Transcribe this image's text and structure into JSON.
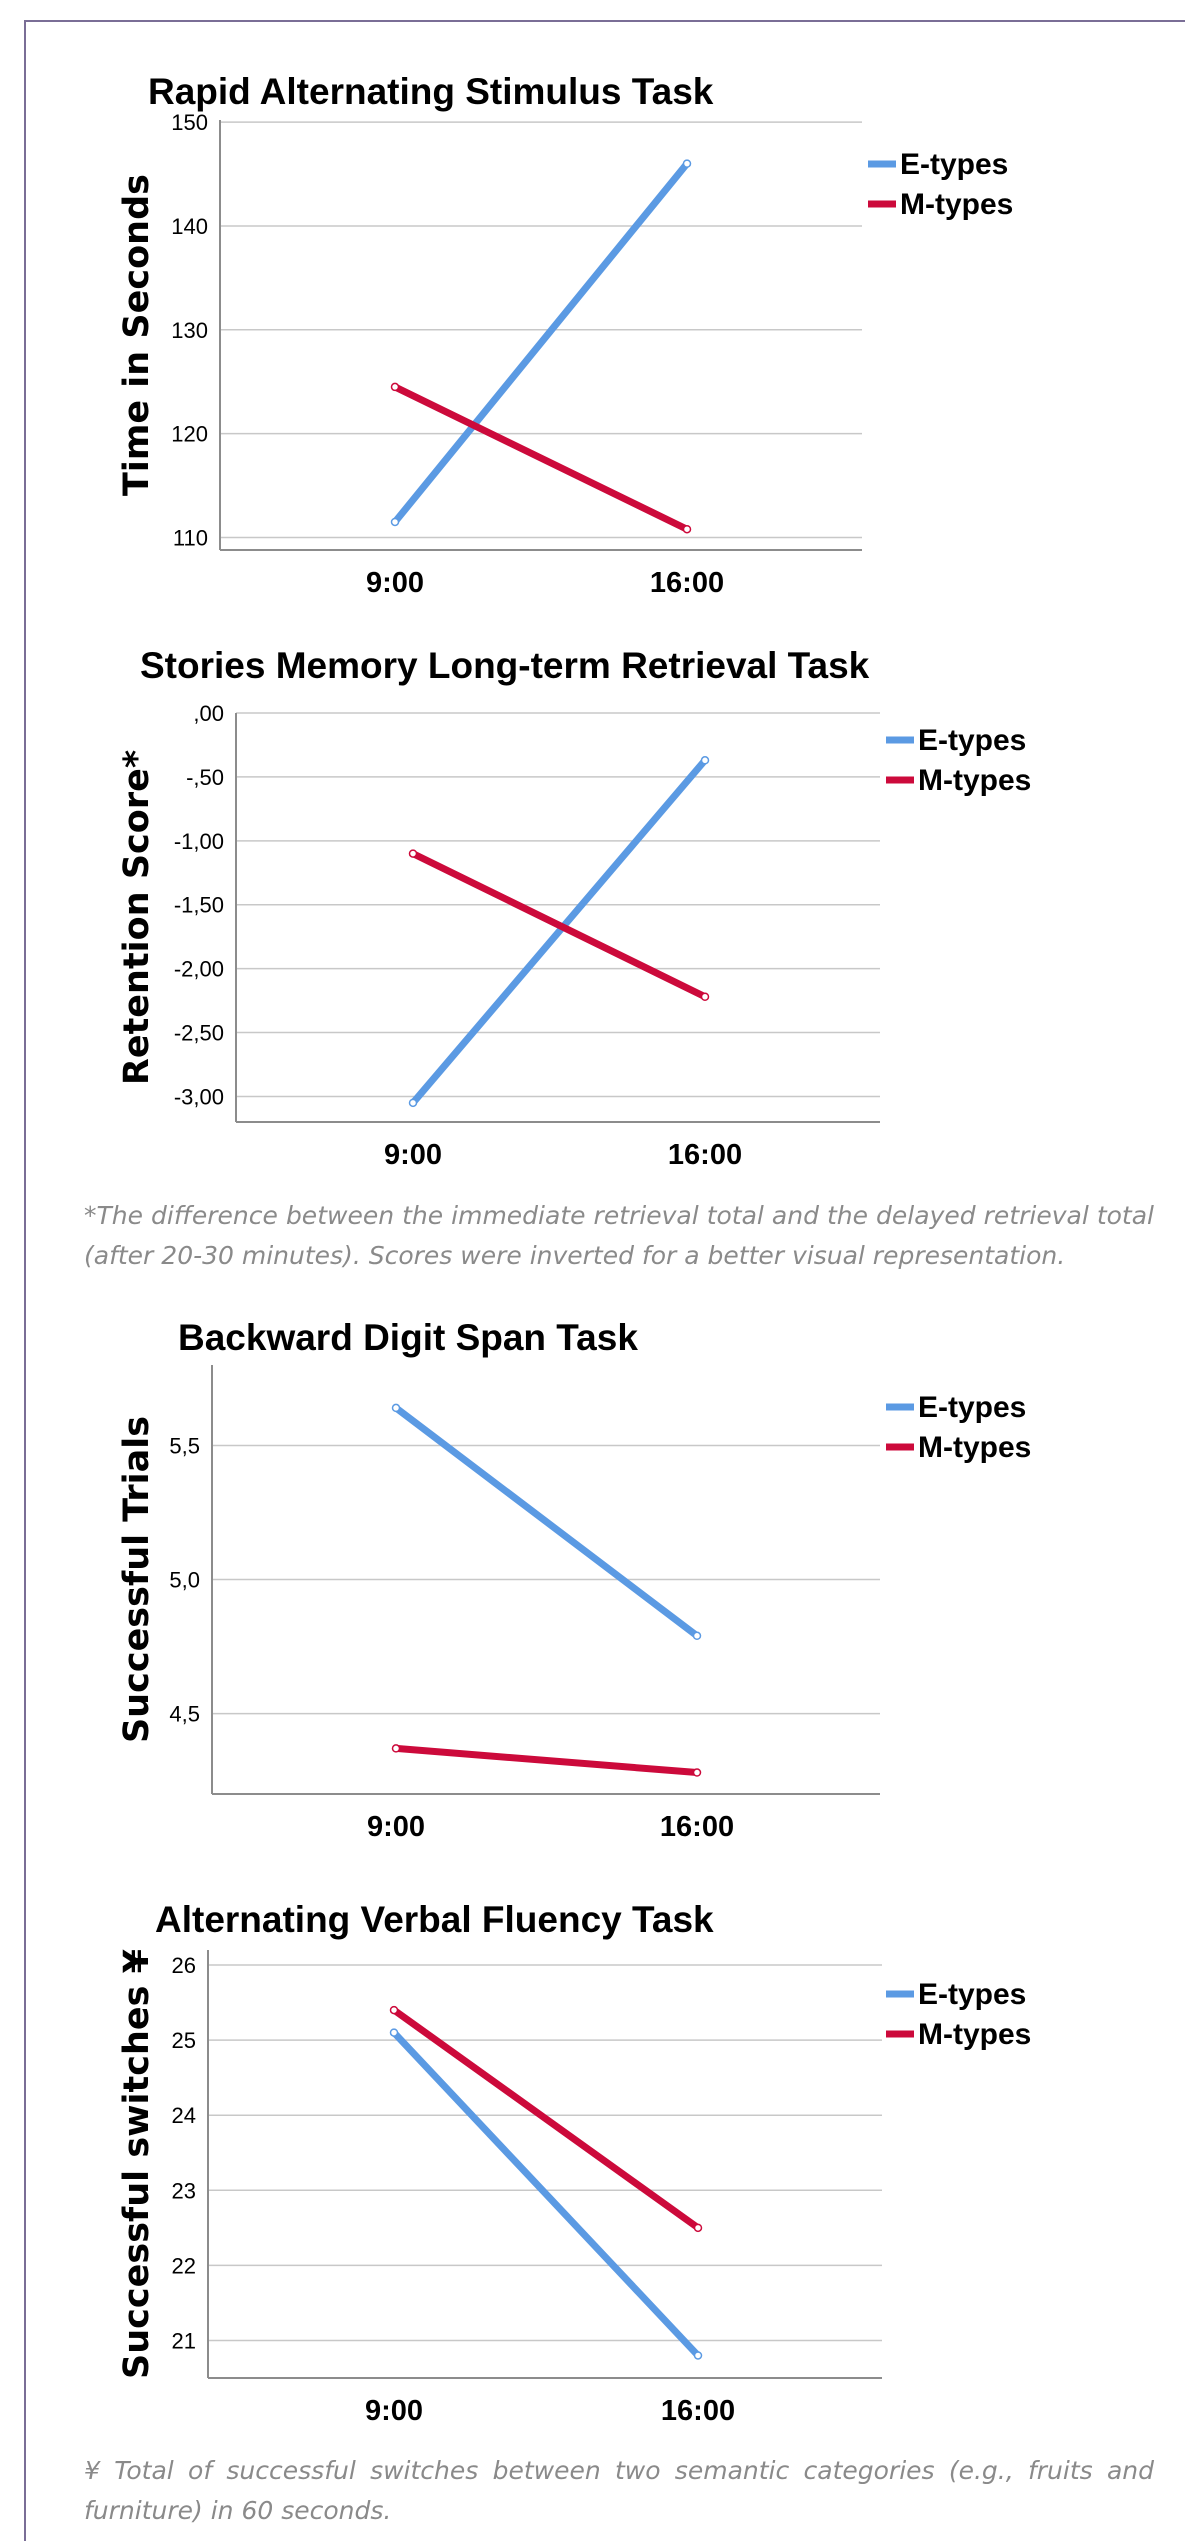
{
  "colors": {
    "e_types": "#5b9ae3",
    "m_types": "#cc0a3b",
    "grid": "#c8c8c8",
    "axis": "#8c8c8c"
  },
  "notes": {
    "retention": "*The difference between the immediate retrieval total and the delayed retrieval total (after 20-30 minutes). Scores were inverted for a better visual representation.",
    "switches": "¥ Total of successful switches between two semantic categories (e.g., fruits and furniture) in 60 seconds."
  },
  "chart_data": [
    {
      "type": "line",
      "title": "Rapid Alternating Stimulus Task",
      "ylabel": "Time in Seconds",
      "xlabel": "",
      "categories": [
        "9:00",
        "16:00"
      ],
      "yticks": [
        "110",
        "120",
        "130",
        "140",
        "150"
      ],
      "ytick_values": [
        110,
        120,
        130,
        140,
        150
      ],
      "ylim": [
        108.8,
        150.2
      ],
      "grid": true,
      "legend": "top-right",
      "series": [
        {
          "name": "E-types",
          "color": "#5b9ae3",
          "values": [
            111.5,
            146.0
          ]
        },
        {
          "name": "M-types",
          "color": "#cc0a3b",
          "values": [
            124.5,
            110.8
          ]
        }
      ]
    },
    {
      "type": "line",
      "title": "Stories Memory Long-term Retrieval Task",
      "ylabel": "Retention Score*",
      "xlabel": "",
      "categories": [
        "9:00",
        "16:00"
      ],
      "yticks": [
        ",00",
        "-,50",
        "-1,00",
        "-1,50",
        "-2,00",
        "-2,50",
        "-3,00"
      ],
      "ytick_values": [
        0,
        -0.5,
        -1.0,
        -1.5,
        -2.0,
        -2.5,
        -3.0
      ],
      "ylim": [
        -3.2,
        0.0
      ],
      "grid": true,
      "legend": "top-right",
      "series": [
        {
          "name": "E-types",
          "color": "#5b9ae3",
          "values": [
            -3.05,
            -0.37
          ]
        },
        {
          "name": "M-types",
          "color": "#cc0a3b",
          "values": [
            -1.1,
            -2.22
          ]
        }
      ]
    },
    {
      "type": "line",
      "title": "Backward Digit Span Task",
      "ylabel": "Successful Trials",
      "xlabel": "",
      "categories": [
        "9:00",
        "16:00"
      ],
      "yticks": [
        "4,5",
        "5,0",
        "5,5"
      ],
      "ytick_values": [
        4.5,
        5.0,
        5.5
      ],
      "ylim": [
        4.2,
        5.8
      ],
      "grid": true,
      "legend": "top-right",
      "series": [
        {
          "name": "E-types",
          "color": "#5b9ae3",
          "values": [
            5.64,
            4.79
          ]
        },
        {
          "name": "M-types",
          "color": "#cc0a3b",
          "values": [
            4.37,
            4.28
          ]
        }
      ]
    },
    {
      "type": "line",
      "title": "Alternating Verbal Fluency Task",
      "ylabel": "Successful switches ¥",
      "xlabel": "",
      "categories": [
        "9:00",
        "16:00"
      ],
      "yticks": [
        "21",
        "22",
        "23",
        "24",
        "25",
        "26"
      ],
      "ytick_values": [
        21,
        22,
        23,
        24,
        25,
        26
      ],
      "ylim": [
        20.5,
        26.2
      ],
      "grid": true,
      "legend": "top-right",
      "series": [
        {
          "name": "E-types",
          "color": "#5b9ae3",
          "values": [
            25.1,
            20.8
          ]
        },
        {
          "name": "M-types",
          "color": "#cc0a3b",
          "values": [
            25.4,
            22.5
          ]
        }
      ]
    }
  ]
}
